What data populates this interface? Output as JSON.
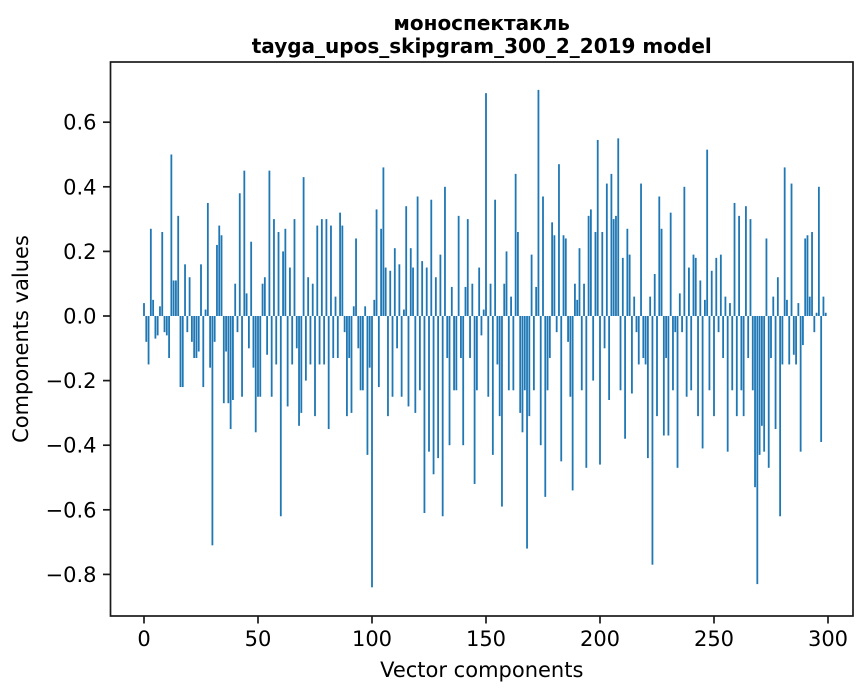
{
  "figure": {
    "background": "#ffffff",
    "text_color": "#000000",
    "spine_color": "#1a1a1a"
  },
  "chart_data": {
    "type": "bar",
    "title": "моноспектакль",
    "subtitle": "tayga_upos_skipgram_300_2_2019 model",
    "xlabel": "Vector components",
    "ylabel": "Components values",
    "bar_color": "#1f77b4",
    "n_components": 300,
    "x_ticks": [
      0,
      50,
      100,
      150,
      200,
      250,
      300
    ],
    "y_ticks": [
      0.6,
      0.4,
      0.2,
      0.0,
      -0.2,
      -0.4,
      -0.6,
      -0.8
    ],
    "xlim": [
      -15,
      311
    ],
    "ylim": [
      -0.93,
      0.79
    ],
    "grid": false,
    "legend": "none",
    "values": [
      0.04,
      -0.08,
      -0.15,
      0.27,
      0.05,
      -0.07,
      -0.06,
      0.03,
      0.26,
      -0.05,
      -0.06,
      -0.13,
      0.5,
      0.11,
      0.11,
      0.31,
      -0.22,
      -0.22,
      0.16,
      -0.05,
      0.12,
      -0.08,
      -0.13,
      -0.13,
      -0.11,
      0.16,
      -0.22,
      0.02,
      0.35,
      -0.16,
      -0.71,
      -0.08,
      0.22,
      0.28,
      0.25,
      -0.27,
      -0.11,
      -0.27,
      -0.35,
      -0.26,
      0.1,
      -0.05,
      0.38,
      -0.25,
      0.45,
      0.07,
      -0.1,
      0.23,
      -0.16,
      -0.36,
      -0.25,
      -0.25,
      0.1,
      0.12,
      -0.12,
      0.45,
      -0.25,
      0.3,
      -0.15,
      0.26,
      -0.62,
      0.2,
      0.27,
      -0.28,
      0.15,
      -0.15,
      0.3,
      -0.1,
      -0.34,
      -0.3,
      0.43,
      -0.2,
      0.12,
      -0.15,
      0.1,
      -0.31,
      0.28,
      -0.15,
      0.3,
      -0.15,
      0.3,
      -0.35,
      0.28,
      -0.13,
      0.06,
      -0.13,
      0.32,
      0.28,
      -0.05,
      -0.31,
      -0.13,
      -0.3,
      0.03,
      0.24,
      -0.1,
      -0.23,
      -0.23,
      0.03,
      -0.43,
      -0.16,
      -0.84,
      0.05,
      0.33,
      -0.22,
      0.27,
      0.46,
      0.15,
      -0.31,
      0.14,
      -0.25,
      0.21,
      -0.1,
      0.16,
      -0.25,
      0.02,
      0.34,
      -0.28,
      0.21,
      0.15,
      -0.3,
      0.37,
      -0.23,
      0.17,
      -0.61,
      0.15,
      -0.42,
      0.36,
      -0.49,
      0.12,
      -0.44,
      0.19,
      -0.62,
      0.4,
      -0.13,
      -0.4,
      0.09,
      -0.23,
      -0.23,
      0.31,
      -0.13,
      -0.4,
      0.09,
      0.3,
      -0.13,
      0.1,
      -0.52,
      -0.23,
      0.15,
      -0.06,
      0.02,
      0.69,
      -0.25,
      0.1,
      -0.43,
      0.36,
      -0.15,
      -0.31,
      -0.59,
      0.1,
      0.2,
      -0.23,
      0.06,
      -0.23,
      0.44,
      0.26,
      -0.3,
      -0.36,
      -0.23,
      -0.72,
      -0.31,
      0.19,
      -0.23,
      0.09,
      0.7,
      -0.4,
      0.37,
      -0.56,
      -0.23,
      -0.13,
      0.29,
      0.25,
      -0.05,
      0.47,
      -0.45,
      0.25,
      0.24,
      -0.08,
      -0.25,
      -0.54,
      0.1,
      0.05,
      0.21,
      -0.23,
      0.1,
      -0.47,
      0.31,
      0.33,
      -0.2,
      0.26,
      0.545,
      -0.46,
      0.26,
      -0.1,
      0.41,
      -0.26,
      0.44,
      0.3,
      0.31,
      0.55,
      -0.23,
      0.18,
      -0.38,
      0.27,
      0.19,
      -0.24,
      0.06,
      -0.05,
      -0.15,
      0.41,
      -0.13,
      -0.15,
      -0.44,
      0.06,
      -0.77,
      0.13,
      -0.31,
      0.37,
      0.27,
      -0.37,
      -0.13,
      -0.37,
      0.32,
      -0.23,
      -0.05,
      -0.47,
      0.07,
      -0.05,
      0.4,
      -0.25,
      0.15,
      -0.23,
      0.19,
      0.18,
      -0.31,
      0.11,
      -0.41,
      0.05,
      0.515,
      -0.23,
      0.14,
      -0.31,
      0.18,
      -0.05,
      0.19,
      -0.13,
      0.06,
      -0.42,
      0.04,
      -0.23,
      0.35,
      -0.31,
      0.31,
      -0.23,
      -0.31,
      0.34,
      -0.13,
      0.3,
      -0.23,
      -0.53,
      -0.83,
      -0.43,
      -0.34,
      -0.42,
      0.24,
      -0.47,
      -0.13,
      0.06,
      -0.35,
      0.12,
      -0.62,
      -0.15,
      0.46,
      0.05,
      -0.15,
      0.41,
      -0.12,
      -0.15,
      0.04,
      -0.42,
      -0.09,
      0.24,
      0.25,
      0.06,
      0.26,
      -0.05,
      0.01,
      0.4,
      -0.39,
      0.06,
      0.01
    ]
  }
}
